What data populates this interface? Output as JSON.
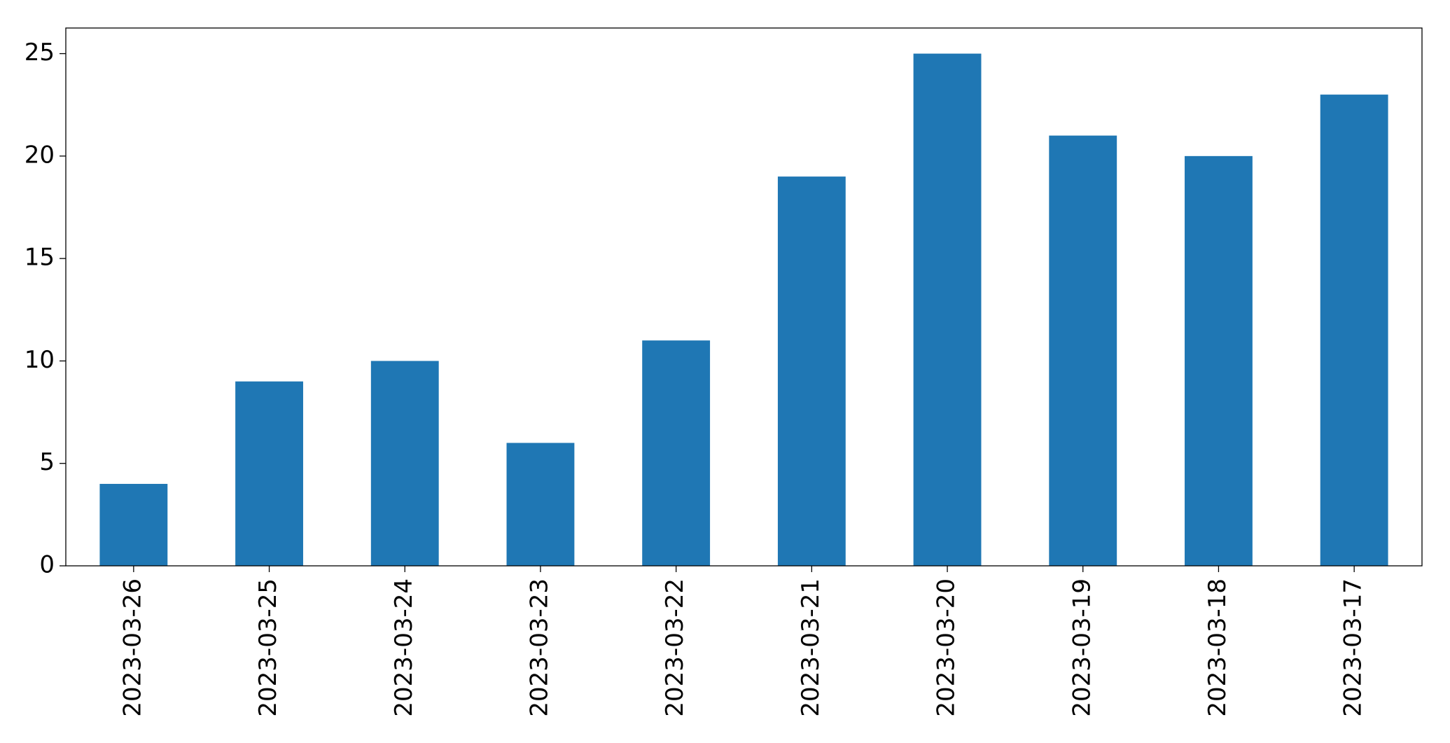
{
  "chart_data": {
    "type": "bar",
    "categories": [
      "2023-03-26",
      "2023-03-25",
      "2023-03-24",
      "2023-03-23",
      "2023-03-22",
      "2023-03-21",
      "2023-03-20",
      "2023-03-19",
      "2023-03-18",
      "2023-03-17"
    ],
    "values": [
      4,
      9,
      10,
      6,
      11,
      19,
      25,
      21,
      20,
      23
    ],
    "color": "#1f77b4",
    "ylim": [
      0,
      26.25
    ],
    "yticks": [
      0,
      5,
      10,
      15,
      20,
      25
    ],
    "grid": false
  }
}
